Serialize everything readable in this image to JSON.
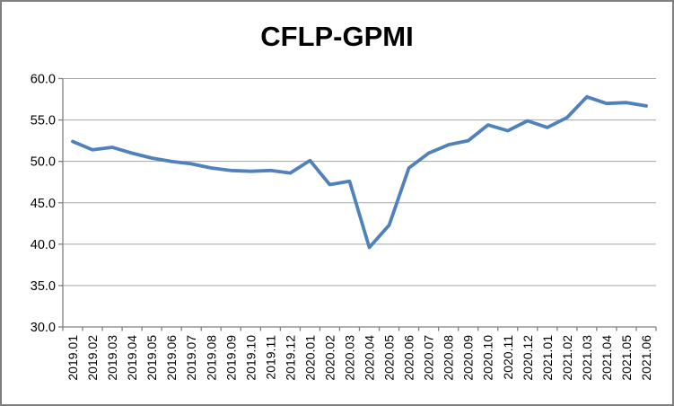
{
  "window": {
    "title": "CFLP-GPMI"
  },
  "chart_data": {
    "type": "line",
    "title": "CFLP-GPMI",
    "categories": [
      "2019.01",
      "2019.02",
      "2019.03",
      "2019.04",
      "2019.05",
      "2019.06",
      "2019.07",
      "2019.08",
      "2019.09",
      "2019.10",
      "2019.11",
      "2019.12",
      "2020.01",
      "2020.02",
      "2020.03",
      "2020.04",
      "2020.05",
      "2020.06",
      "2020.07",
      "2020.08",
      "2020.09",
      "2020.10",
      "2020.11",
      "2020.12",
      "2021.01",
      "2021.02",
      "2021.03",
      "2021.04",
      "2021.05",
      "2021.06"
    ],
    "series": [
      {
        "name": "CFLP-GPMI",
        "values": [
          52.4,
          51.4,
          51.7,
          51.0,
          50.4,
          50.0,
          49.7,
          49.2,
          48.9,
          48.8,
          48.9,
          48.6,
          50.1,
          47.2,
          47.6,
          39.6,
          42.3,
          49.2,
          51.0,
          52.0,
          52.5,
          54.4,
          53.7,
          54.9,
          54.1,
          55.3,
          57.8,
          57.0,
          57.1,
          56.7
        ]
      }
    ],
    "xlabel": "",
    "ylabel": "",
    "ylim": [
      30,
      60
    ],
    "ytick_step": 5,
    "ytick_labels": [
      "30.0",
      "35.0",
      "40.0",
      "45.0",
      "50.0",
      "55.0",
      "60.0"
    ],
    "grid": true,
    "legend": "none",
    "x_label_rotation_deg": -90,
    "colors": {
      "line": "#4F81BD",
      "gridline": "#A6A6A6",
      "axis": "#808080",
      "border": "#7F7F7F",
      "background": "#FFFFFF",
      "text": "#000000"
    }
  }
}
